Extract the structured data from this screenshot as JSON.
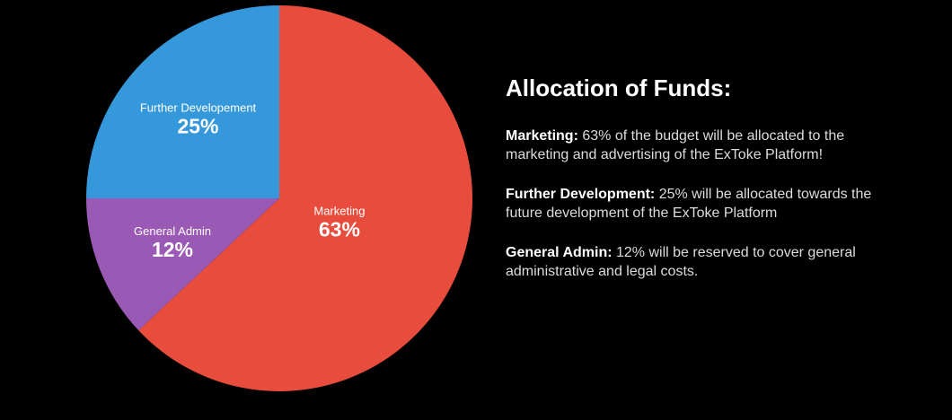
{
  "chart_data": {
    "type": "pie",
    "slices": [
      {
        "label": "Marketing",
        "value": 63,
        "value_label": "63%",
        "color": "#e74c3c"
      },
      {
        "label": "General Admin",
        "value": 12,
        "value_label": "12%",
        "color": "#9b59b6"
      },
      {
        "label": "Further Developement",
        "value": 25,
        "value_label": "25%",
        "color": "#3498db"
      }
    ]
  },
  "panel": {
    "title": "Allocation of Funds:",
    "items": [
      {
        "label": "Marketing:",
        "text": "63% of the budget will be allocated to the marketing and advertising of the ExToke Platform!"
      },
      {
        "label": "Further Development:",
        "text": "25% will be allocated towards the future development of the ExToke Platform"
      },
      {
        "label": "General Admin:",
        "text": "12% will be reserved to cover general administrative and legal costs."
      }
    ]
  }
}
